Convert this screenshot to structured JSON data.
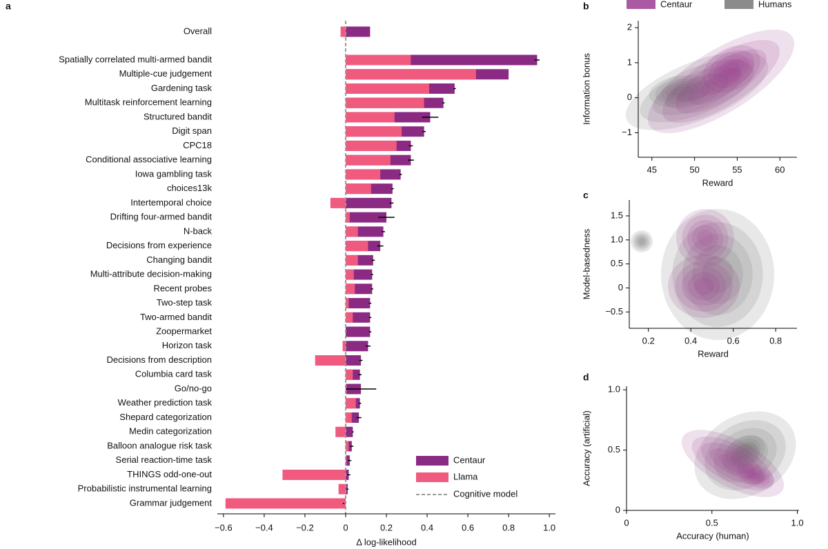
{
  "chart_data": [
    {
      "type": "bar",
      "panel": "a",
      "orientation": "horizontal",
      "xlabel": "Δ log-likelihood",
      "categories": [
        "Overall",
        "Spatially correlated multi-armed bandit",
        "Multiple-cue judgement",
        "Gardening task",
        "Multitask reinforcement learning",
        "Structured bandit",
        "Digit span",
        "CPC18",
        "Conditional associative learning",
        "Iowa gambling task",
        "choices13k",
        "Intertemporal choice",
        "Drifting four-armed bandit",
        "N-back",
        "Decisions from experience",
        "Changing bandit",
        "Multi-attribute decision-making",
        "Recent probes",
        "Two-step task",
        "Two-armed bandit",
        "Zoopermarket",
        "Horizon task",
        "Decisions from description",
        "Columbia card task",
        "Go/no-go",
        "Weather prediction task",
        "Shepard categorization",
        "Medin categorization",
        "Balloon analogue risk task",
        "Serial reaction-time task",
        "THINGS odd-one-out",
        "Probabilistic instrumental learning",
        "Grammar judgement"
      ],
      "series": [
        {
          "name": "Centaur",
          "color": "#8a2a82",
          "values": [
            0.12,
            0.94,
            0.8,
            0.535,
            0.48,
            0.415,
            0.385,
            0.32,
            0.32,
            0.27,
            0.23,
            0.225,
            0.2,
            0.185,
            0.17,
            0.135,
            0.13,
            0.13,
            0.12,
            0.12,
            0.12,
            0.11,
            0.075,
            0.07,
            0.075,
            0.07,
            0.065,
            0.035,
            0.03,
            0.02,
            0.015,
            0.01,
            -0.01
          ],
          "errors": [
            0,
            0.012,
            0,
            0.006,
            0.006,
            0.04,
            0.008,
            0.01,
            0.015,
            0.006,
            0.006,
            0.01,
            0.04,
            0.008,
            0.015,
            0.008,
            0.005,
            0.005,
            0.006,
            0.006,
            0.006,
            0.012,
            0.008,
            0.008,
            0.075,
            0.006,
            0.012,
            0.004,
            0.008,
            0.008,
            0.008,
            0.004,
            0.004
          ]
        },
        {
          "name": "Llama",
          "color": "#f05a7e",
          "values": [
            -0.025,
            0.32,
            0.64,
            0.41,
            0.385,
            0.24,
            0.275,
            0.25,
            0.22,
            0.17,
            0.125,
            -0.075,
            0.02,
            0.06,
            0.11,
            0.06,
            0.04,
            0.045,
            0.015,
            0.035,
            0,
            -0.015,
            -0.15,
            0.035,
            0.005,
            0.05,
            0.03,
            -0.05,
            0.015,
            0.005,
            -0.31,
            -0.035,
            -0.59
          ]
        }
      ],
      "reference_line": {
        "name": "Cognitive model",
        "value": 0,
        "color": "#999999"
      },
      "xlim": [
        -0.63,
        1.03
      ],
      "xticks": [
        {
          "value": -0.6,
          "label": "−0.6"
        },
        {
          "value": -0.4,
          "label": "−0.4"
        },
        {
          "value": -0.2,
          "label": "−0.2"
        },
        0,
        0.2,
        0.4,
        0.6,
        0.8,
        {
          "value": 1.0,
          "label": "1.0"
        }
      ]
    },
    {
      "type": "density",
      "panel": "b",
      "xlabel": "Reward",
      "ylabel": "Information bonus",
      "series": [
        {
          "name": "Centaur",
          "color": "#9b3d92"
        },
        {
          "name": "Humans",
          "color": "#6e6e6e"
        }
      ],
      "xlim": [
        43.4,
        62
      ],
      "xticks": [
        45,
        50,
        55,
        60
      ],
      "ylim": [
        -1.7,
        2.2
      ],
      "yticks": [
        {
          "value": -1,
          "label": "−1"
        },
        0,
        1,
        2
      ]
    },
    {
      "type": "density",
      "panel": "c",
      "xlabel": "Reward",
      "ylabel": "Model-basedness",
      "xlim": [
        0.11,
        0.9
      ],
      "xticks": [
        0.2,
        0.4,
        0.6,
        0.8
      ],
      "ylim": [
        -0.84,
        1.83
      ],
      "yticks": [
        {
          "value": -0.5,
          "label": "−0.5"
        },
        0,
        0.5,
        {
          "value": 1.0,
          "label": "1.0"
        },
        1.5
      ]
    },
    {
      "type": "density",
      "panel": "d",
      "xlabel": "Accuracy (human)",
      "ylabel": "Accuracy (artificial)",
      "xlim": [
        0,
        1.01
      ],
      "xticks": [
        0,
        0.5,
        {
          "value": 1.0,
          "label": "1.0"
        }
      ],
      "ylim": [
        0,
        1.03
      ],
      "yticks": [
        0,
        0.5,
        {
          "value": 1.0,
          "label": "1.0"
        }
      ]
    }
  ]
}
